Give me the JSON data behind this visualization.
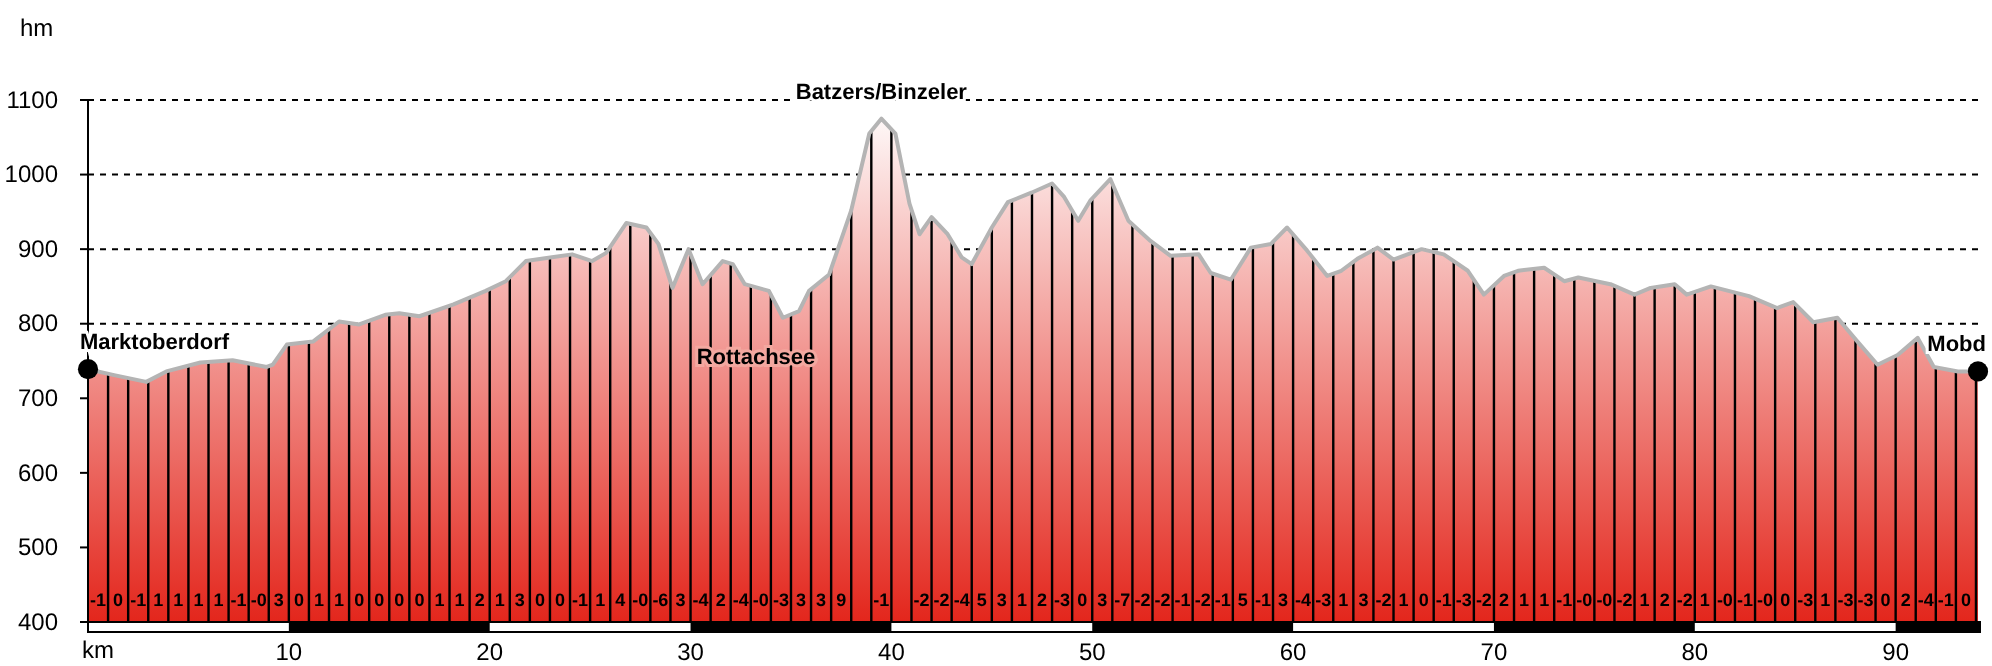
{
  "chart_data": {
    "type": "area",
    "ylabel": "hm",
    "xlabel": "km",
    "xlim": [
      0,
      94.2
    ],
    "xticks": [
      10,
      20,
      30,
      40,
      50,
      60,
      70,
      80,
      90
    ],
    "ylim": [
      400,
      1100
    ],
    "yticks": [
      400,
      500,
      600,
      700,
      800,
      900,
      1000,
      1100
    ],
    "grid": true,
    "series": [
      {
        "color": "#e3261c",
        "x": [
          0,
          1.3,
          2.9,
          3.9,
          5.6,
          7.2,
          8.9,
          9.2,
          9.9,
          11.2,
          12.5,
          13.5,
          14.8,
          15.5,
          16.5,
          18.2,
          19.8,
          20.8,
          21.8,
          23.1,
          24.1,
          25.1,
          25.8,
          26.8,
          27.8,
          28.4,
          29.1,
          29.9,
          30.6,
          31.6,
          32.1,
          32.7,
          33.9,
          34.6,
          35.4,
          35.9,
          36.9,
          38.0,
          38.9,
          39.5,
          40.2,
          40.9,
          41.4,
          42.0,
          42.8,
          43.5,
          44.0,
          45.0,
          45.8,
          47.0,
          48.0,
          48.6,
          49.3,
          49.9,
          50.9,
          51.8,
          52.9,
          53.9,
          55.3,
          55.9,
          56.9,
          57.9,
          58.9,
          59.7,
          60.7,
          61.7,
          62.4,
          63.2,
          64.2,
          65.0,
          66.4,
          67.5,
          68.7,
          69.5,
          70.5,
          71.2,
          72.5,
          73.5,
          74.2,
          75.8,
          77.0,
          77.8,
          79.0,
          79.6,
          80.8,
          82.7,
          84.1,
          84.9,
          85.9,
          87.1,
          88.1,
          89.1,
          90.1,
          91.1,
          91.9,
          93.1,
          94.1
        ],
        "values": [
          739,
          731,
          722,
          736,
          748,
          751,
          742,
          745,
          772,
          776,
          803,
          799,
          812,
          814,
          810,
          826,
          844,
          857,
          884,
          889,
          893,
          884,
          895,
          935,
          929,
          907,
          848,
          900,
          853,
          884,
          880,
          853,
          844,
          808,
          817,
          844,
          866,
          952,
          1055,
          1075,
          1055,
          961,
          920,
          943,
          920,
          889,
          880,
          929,
          963,
          976,
          988,
          970,
          938,
          965,
          994,
          938,
          911,
          891,
          893,
          868,
          859,
          902,
          907,
          929,
          898,
          864,
          871,
          887,
          902,
          886,
          900,
          893,
          871,
          839,
          864,
          871,
          875,
          857,
          862,
          853,
          839,
          848,
          853,
          839,
          850,
          837,
          821,
          829,
          802,
          808,
          776,
          745,
          758,
          781,
          742,
          736,
          736
        ]
      },
      {
        "type": "scatter",
        "color": "#000000",
        "marker": "circle",
        "x": [
          0,
          94.1
        ],
        "values": [
          739,
          736
        ]
      }
    ],
    "annotations": [
      {
        "text": "Marktoberdorf",
        "x": 0,
        "y": 739
      },
      {
        "text": "Batzers/Binzeler",
        "x": 39.5,
        "y": 1075
      },
      {
        "text": "Mobd",
        "x": 94.1,
        "y": 736
      },
      "-1",
      "0",
      "-1",
      "1",
      "1",
      "1",
      "1",
      "-1",
      "-0",
      "3",
      "0",
      "1",
      "1",
      "0",
      "0",
      "0",
      "0",
      "1",
      "1",
      "2",
      "1",
      "3",
      "0",
      "0",
      "-1",
      "1",
      "4",
      "-0",
      "-6",
      "3",
      "-4",
      "2",
      "-4",
      "-0",
      "-3",
      "3",
      "3",
      "9",
      null,
      "-1",
      null,
      "-2",
      "-2",
      "-4",
      "5",
      "3",
      "1",
      "2",
      "-3",
      "0",
      "3",
      "-7",
      "-2",
      "-2",
      "-1",
      "-2",
      "-1",
      "5",
      "-1",
      "3",
      "-4",
      "-3",
      "1",
      "3",
      "-2",
      "1",
      "0",
      "-1",
      "-3",
      "-2",
      "2",
      "1",
      "1",
      "-1",
      "-0",
      "-0",
      "-2",
      "1",
      "2",
      "-2",
      "1",
      "-0",
      "-1",
      "-0",
      "0",
      "-3",
      "1",
      "-3",
      "-3",
      "0",
      "2",
      "-4",
      "-1",
      "0",
      "Rottachsee"
    ]
  }
}
